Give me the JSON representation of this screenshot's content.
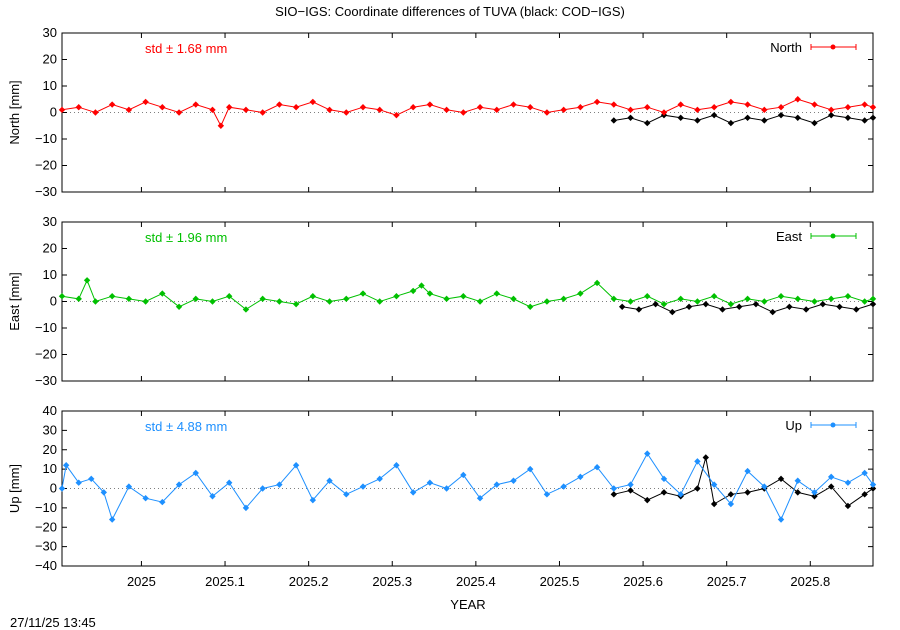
{
  "title": "SIO−IGS: Coordinate differences of TUVA (black: COD−IGS)",
  "timestamp": "27/11/25 13:45",
  "xlabel": "YEAR",
  "x_ticks": [
    "2025",
    "2025.1",
    "2025.2",
    "2025.3",
    "2025.4",
    "2025.5",
    "2025.6",
    "2025.7",
    "2025.8"
  ],
  "colors": {
    "north": "#ff0000",
    "east": "#00c000",
    "up": "#1e90ff",
    "cod": "#000000",
    "axis": "#000000"
  },
  "chart_data": [
    {
      "type": "line",
      "panel": "north",
      "ylabel": "North [mm]",
      "legend": "North",
      "std_label": "std ± 1.68 mm",
      "ylim": [
        -30,
        30
      ],
      "yticks": [
        "30",
        "20",
        "10",
        "0",
        "−10",
        "−20",
        "−30"
      ],
      "xlim": [
        2024.905,
        2025.875
      ],
      "grid": false,
      "legend_position": "top-right",
      "series": [
        {
          "name": "North",
          "color": "#ff0000",
          "x": [
            2024.905,
            2024.925,
            2024.945,
            2024.965,
            2024.985,
            2025.005,
            2025.025,
            2025.045,
            2025.065,
            2025.085,
            2025.095,
            2025.105,
            2025.125,
            2025.145,
            2025.165,
            2025.185,
            2025.205,
            2025.225,
            2025.245,
            2025.265,
            2025.285,
            2025.305,
            2025.325,
            2025.345,
            2025.365,
            2025.385,
            2025.405,
            2025.425,
            2025.445,
            2025.465,
            2025.485,
            2025.505,
            2025.525,
            2025.545,
            2025.565,
            2025.585,
            2025.605,
            2025.625,
            2025.645,
            2025.665,
            2025.685,
            2025.705,
            2025.725,
            2025.745,
            2025.765,
            2025.785,
            2025.805,
            2025.825,
            2025.845,
            2025.865,
            2025.875
          ],
          "y": [
            1,
            2,
            0,
            3,
            1,
            4,
            2,
            0,
            3,
            1,
            -5,
            2,
            1,
            0,
            3,
            2,
            4,
            1,
            0,
            2,
            1,
            -1,
            2,
            3,
            1,
            0,
            2,
            1,
            3,
            2,
            0,
            1,
            2,
            4,
            3,
            1,
            2,
            0,
            3,
            1,
            2,
            4,
            3,
            1,
            2,
            5,
            3,
            1,
            2,
            3,
            2
          ]
        },
        {
          "name": "COD−IGS",
          "color": "#000000",
          "x": [
            2025.565,
            2025.585,
            2025.605,
            2025.625,
            2025.645,
            2025.665,
            2025.685,
            2025.705,
            2025.725,
            2025.745,
            2025.765,
            2025.785,
            2025.805,
            2025.825,
            2025.845,
            2025.865,
            2025.875
          ],
          "y": [
            -3,
            -2,
            -4,
            -1,
            -2,
            -3,
            -1,
            -4,
            -2,
            -3,
            -1,
            -2,
            -4,
            -1,
            -2,
            -3,
            -2
          ]
        }
      ]
    },
    {
      "type": "line",
      "panel": "east",
      "ylabel": "East [mm]",
      "legend": "East",
      "std_label": "std ± 1.96 mm",
      "ylim": [
        -30,
        30
      ],
      "yticks": [
        "30",
        "20",
        "10",
        "0",
        "−10",
        "−20",
        "−30"
      ],
      "xlim": [
        2024.905,
        2025.875
      ],
      "grid": false,
      "legend_position": "top-right",
      "series": [
        {
          "name": "East",
          "color": "#00c000",
          "x": [
            2024.905,
            2024.925,
            2024.935,
            2024.945,
            2024.965,
            2024.985,
            2025.005,
            2025.025,
            2025.045,
            2025.065,
            2025.085,
            2025.105,
            2025.125,
            2025.145,
            2025.165,
            2025.185,
            2025.205,
            2025.225,
            2025.245,
            2025.265,
            2025.285,
            2025.305,
            2025.325,
            2025.335,
            2025.345,
            2025.365,
            2025.385,
            2025.405,
            2025.425,
            2025.445,
            2025.465,
            2025.485,
            2025.505,
            2025.525,
            2025.545,
            2025.565,
            2025.585,
            2025.605,
            2025.625,
            2025.645,
            2025.665,
            2025.685,
            2025.705,
            2025.725,
            2025.745,
            2025.765,
            2025.785,
            2025.805,
            2025.825,
            2025.845,
            2025.865,
            2025.875
          ],
          "y": [
            2,
            1,
            8,
            0,
            2,
            1,
            0,
            3,
            -2,
            1,
            0,
            2,
            -3,
            1,
            0,
            -1,
            2,
            0,
            1,
            3,
            0,
            2,
            4,
            6,
            3,
            1,
            2,
            0,
            3,
            1,
            -2,
            0,
            1,
            3,
            7,
            1,
            0,
            2,
            -1,
            1,
            0,
            2,
            -1,
            1,
            0,
            2,
            1,
            0,
            1,
            2,
            0,
            1
          ]
        },
        {
          "name": "COD−IGS",
          "color": "#000000",
          "x": [
            2025.575,
            2025.595,
            2025.615,
            2025.635,
            2025.655,
            2025.675,
            2025.695,
            2025.715,
            2025.735,
            2025.755,
            2025.775,
            2025.795,
            2025.815,
            2025.835,
            2025.855,
            2025.875
          ],
          "y": [
            -2,
            -3,
            -1,
            -4,
            -2,
            -1,
            -3,
            -2,
            -1,
            -4,
            -2,
            -3,
            -1,
            -2,
            -3,
            -1
          ]
        }
      ]
    },
    {
      "type": "line",
      "panel": "up",
      "ylabel": "Up [mm]",
      "legend": "Up",
      "std_label": "std ± 4.88 mm",
      "ylim": [
        -40,
        40
      ],
      "yticks": [
        "40",
        "30",
        "20",
        "10",
        "0",
        "−10",
        "−20",
        "−30",
        "−40"
      ],
      "xlim": [
        2024.905,
        2025.875
      ],
      "grid": false,
      "legend_position": "top-right",
      "series": [
        {
          "name": "Up",
          "color": "#1e90ff",
          "x": [
            2024.905,
            2024.91,
            2024.925,
            2024.94,
            2024.955,
            2024.965,
            2024.985,
            2025.005,
            2025.025,
            2025.045,
            2025.065,
            2025.085,
            2025.105,
            2025.125,
            2025.145,
            2025.165,
            2025.185,
            2025.205,
            2025.225,
            2025.245,
            2025.265,
            2025.285,
            2025.305,
            2025.325,
            2025.345,
            2025.365,
            2025.385,
            2025.405,
            2025.425,
            2025.445,
            2025.465,
            2025.485,
            2025.505,
            2025.525,
            2025.545,
            2025.565,
            2025.585,
            2025.605,
            2025.625,
            2025.645,
            2025.665,
            2025.685,
            2025.705,
            2025.725,
            2025.745,
            2025.765,
            2025.785,
            2025.805,
            2025.825,
            2025.845,
            2025.865,
            2025.875
          ],
          "y": [
            0,
            12,
            3,
            5,
            -2,
            -16,
            1,
            -5,
            -7,
            2,
            8,
            -4,
            3,
            -10,
            0,
            2,
            12,
            -6,
            4,
            -3,
            1,
            5,
            12,
            -2,
            3,
            0,
            7,
            -5,
            2,
            4,
            10,
            -3,
            1,
            6,
            11,
            0,
            2,
            18,
            5,
            -3,
            14,
            2,
            -8,
            9,
            1,
            -16,
            4,
            -2,
            6,
            3,
            8,
            2
          ]
        },
        {
          "name": "COD−IGS",
          "color": "#000000",
          "x": [
            2025.565,
            2025.585,
            2025.605,
            2025.625,
            2025.645,
            2025.665,
            2025.675,
            2025.685,
            2025.705,
            2025.725,
            2025.745,
            2025.765,
            2025.785,
            2025.805,
            2025.825,
            2025.845,
            2025.865,
            2025.875
          ],
          "y": [
            -3,
            -1,
            -6,
            -2,
            -4,
            0,
            16,
            -8,
            -3,
            -2,
            0,
            5,
            -2,
            -4,
            1,
            -9,
            -3,
            0
          ]
        }
      ]
    }
  ]
}
